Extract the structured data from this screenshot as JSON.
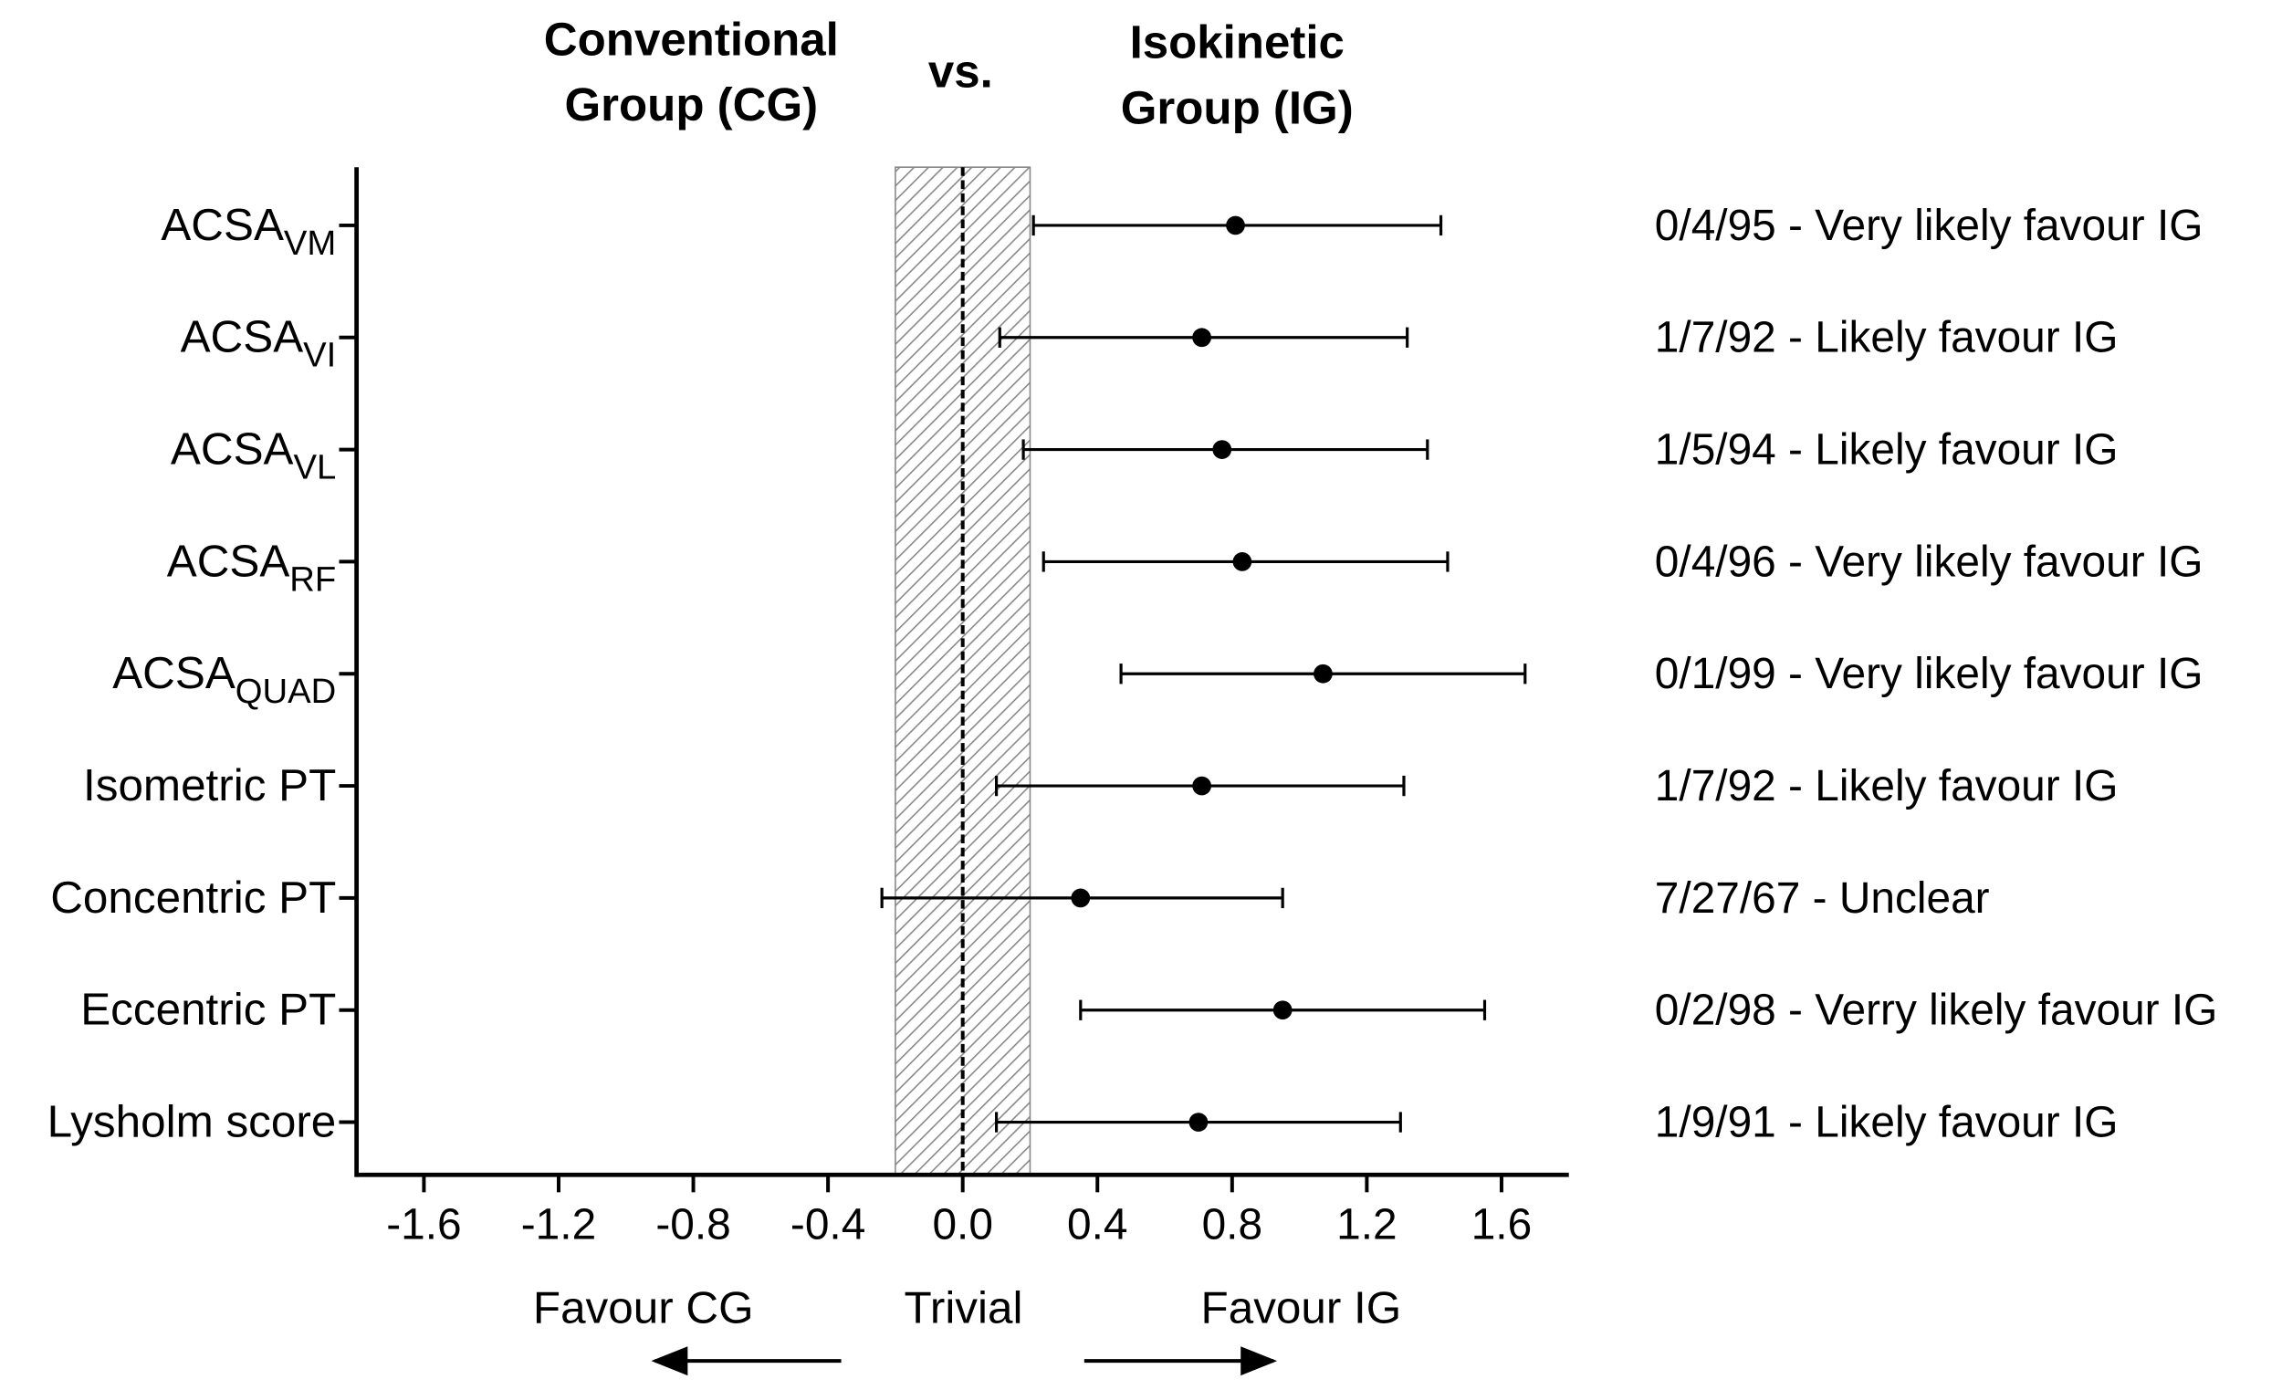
{
  "chart_data": {
    "type": "forest",
    "header_left": [
      "Conventional",
      "Group (CG)"
    ],
    "header_mid": "vs.",
    "header_right": [
      "Isokinetic",
      "Group (IG)"
    ],
    "categories": [
      [
        "ACSA",
        "VM"
      ],
      [
        "ACSA",
        "VI"
      ],
      [
        "ACSA",
        "VL"
      ],
      [
        "ACSA",
        "RF"
      ],
      [
        "ACSA",
        "QUAD"
      ],
      [
        "Isometric PT"
      ],
      [
        "Concentric PT"
      ],
      [
        "Eccentric PT"
      ],
      [
        "Lysholm score"
      ]
    ],
    "values": [
      0.81,
      0.71,
      0.77,
      0.83,
      1.07,
      0.71,
      0.35,
      0.95,
      0.7
    ],
    "lower": [
      0.21,
      0.11,
      0.18,
      0.24,
      0.47,
      0.1,
      -0.24,
      0.35,
      0.1
    ],
    "upper": [
      1.42,
      1.32,
      1.38,
      1.44,
      1.67,
      1.31,
      0.95,
      1.55,
      1.3
    ],
    "annotations": [
      "0/4/95 - Very likely favour IG",
      "1/7/92 - Likely favour IG",
      "1/5/94 - Likely favour IG",
      "0/4/96 - Very likely favour IG",
      "0/1/99 - Very likely favour IG",
      "1/7/92 - Likely favour IG",
      "7/27/67 - Unclear",
      "0/2/98 - Verry likely favour IG",
      "1/9/91 - Likely favour IG"
    ],
    "color": "#000000",
    "xlim": [
      -1.8,
      1.8
    ],
    "xticks": [
      -1.6,
      -1.2,
      -0.8,
      -0.4,
      {
        "value": 0,
        "label": "0.0"
      },
      0.4,
      0.8,
      1.2,
      1.6
    ],
    "trivial_range": [
      -0.2,
      0.2
    ],
    "trivial_label": "Trivial",
    "favour_left": "Favour CG",
    "favour_right": "Favour IG"
  }
}
